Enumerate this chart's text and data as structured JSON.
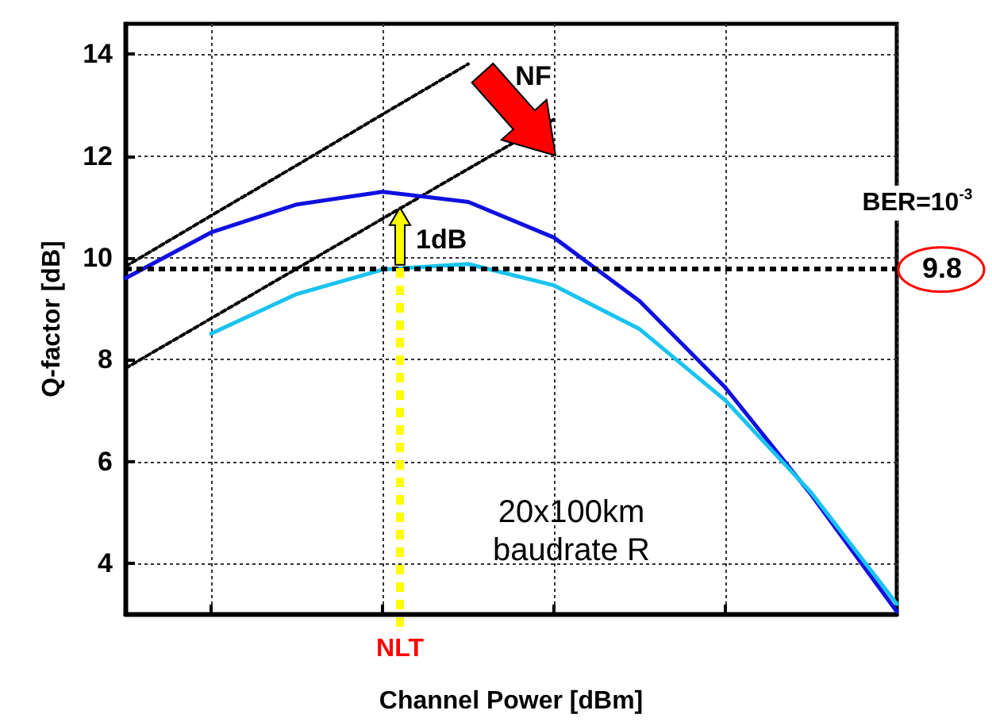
{
  "chart_data": {
    "type": "line",
    "xlabel": "Channel Power [dBm]",
    "ylabel": "Q-factor [dB]",
    "categories": [
      null,
      null,
      null,
      null,
      null,
      null,
      null,
      null,
      null,
      null
    ],
    "ylim": [
      3,
      14.6
    ],
    "yticks": [
      4,
      6,
      8,
      10,
      12,
      14
    ],
    "tick_labels": "y",
    "grid": true,
    "marker": "none",
    "series": [
      {
        "color": "#1010e0",
        "line_style": "solid",
        "values": [
          9.6,
          10.5,
          11.05,
          11.3,
          11.1,
          10.4,
          9.15,
          7.45,
          5.35,
          3.05
        ]
      },
      {
        "color": "#19c3f0",
        "line_style": "solid",
        "values": [
          null,
          8.51,
          9.29,
          9.77,
          9.88,
          9.46,
          8.6,
          7.2,
          5.39,
          3.2
        ]
      },
      {
        "color": "#000000",
        "line_style": "dotted",
        "values": [
          9.83,
          10.83,
          11.82,
          12.82,
          13.81,
          null,
          null,
          null,
          null,
          null
        ]
      },
      {
        "color": "#000000",
        "line_style": "dotted",
        "values": [
          7.83,
          8.81,
          9.79,
          10.77,
          11.75,
          12.72,
          null,
          null,
          null,
          null
        ]
      }
    ],
    "ref_lines": [
      {
        "axis": "y",
        "value": 9.8,
        "label": "9.8",
        "color": "#000000",
        "line_style": "dashed"
      }
    ],
    "annotations": [
      "NF",
      "1dB",
      "BER=10$^{-3}$",
      "20x100km\nbaudrate R",
      "NLT"
    ]
  }
}
